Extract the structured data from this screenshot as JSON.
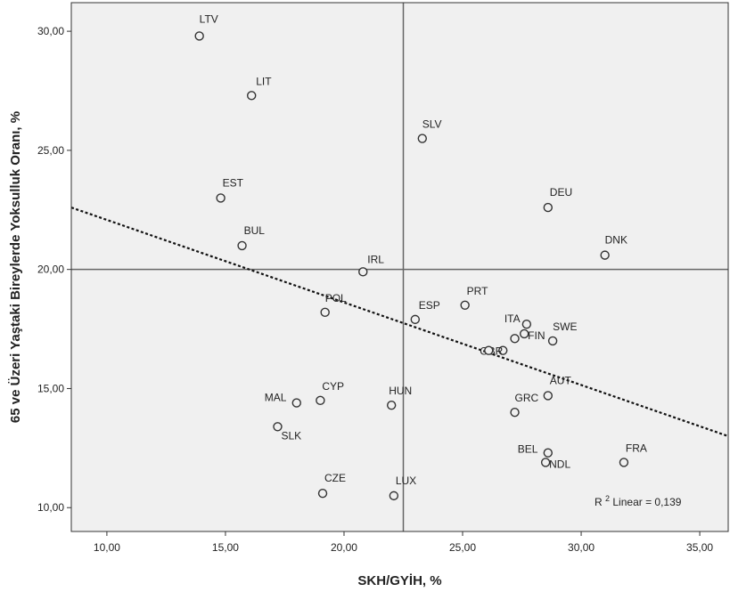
{
  "chart_data": {
    "type": "scatter",
    "title": "",
    "xlabel": "SKH/GYİH, %",
    "ylabel": "65 ve Üzeri Yaştaki Bireylerde Yoksulluk Oranı, %",
    "xlim": [
      8.5,
      36.2
    ],
    "ylim": [
      9.0,
      31.2
    ],
    "xticks": [
      10,
      15,
      20,
      25,
      30,
      35
    ],
    "yticks": [
      10,
      15,
      20,
      25,
      30
    ],
    "xtick_labels": [
      "10,00",
      "15,00",
      "20,00",
      "25,00",
      "30,00",
      "35,00"
    ],
    "ytick_labels": [
      "10,00",
      "15,00",
      "20,00",
      "25,00",
      "30,00"
    ],
    "reference_lines": {
      "x": 22.5,
      "y": 20.0
    },
    "fit_line": {
      "type": "linear",
      "x": [
        8.5,
        36.2
      ],
      "y": [
        22.6,
        13.0
      ]
    },
    "r2_annotation": {
      "prefix": "R",
      "superscript": "2",
      "text": " Linear = 0,139"
    },
    "points": [
      {
        "label": "LTV",
        "x": 13.9,
        "y": 29.8
      },
      {
        "label": "LIT",
        "x": 16.1,
        "y": 27.3
      },
      {
        "label": "SLV",
        "x": 23.3,
        "y": 25.5
      },
      {
        "label": "EST",
        "x": 14.8,
        "y": 23.0
      },
      {
        "label": "DEU",
        "x": 28.6,
        "y": 22.6
      },
      {
        "label": "BUL",
        "x": 15.7,
        "y": 21.0
      },
      {
        "label": "DNK",
        "x": 31.0,
        "y": 20.6
      },
      {
        "label": "IRL",
        "x": 20.8,
        "y": 19.9
      },
      {
        "label": "PRT",
        "x": 25.1,
        "y": 18.5
      },
      {
        "label": "POL",
        "x": 19.2,
        "y": 18.2
      },
      {
        "label": "ESP",
        "x": 23.0,
        "y": 17.9
      },
      {
        "label": "ITA",
        "x": 27.7,
        "y": 17.7
      },
      {
        "label": "FIN",
        "x": 27.6,
        "y": 17.3
      },
      {
        "label": "SWE",
        "x": 28.8,
        "y": 17.0
      },
      {
        "label": "",
        "x": 27.2,
        "y": 17.1
      },
      {
        "label": "GBR",
        "x": 26.7,
        "y": 16.6
      },
      {
        "label": "",
        "x": 26.1,
        "y": 16.6
      },
      {
        "label": "AUT",
        "x": 28.6,
        "y": 14.7
      },
      {
        "label": "MAL",
        "x": 18.0,
        "y": 14.4
      },
      {
        "label": "CYP",
        "x": 19.0,
        "y": 14.5
      },
      {
        "label": "HUN",
        "x": 22.0,
        "y": 14.3
      },
      {
        "label": "GRC",
        "x": 27.2,
        "y": 14.0
      },
      {
        "label": "SLK",
        "x": 17.2,
        "y": 13.4
      },
      {
        "label": "BEL",
        "x": 28.6,
        "y": 12.3
      },
      {
        "label": "FRA",
        "x": 31.8,
        "y": 11.9
      },
      {
        "label": "NDL",
        "x": 28.5,
        "y": 11.9
      },
      {
        "label": "CZE",
        "x": 19.1,
        "y": 10.6
      },
      {
        "label": "LUX",
        "x": 22.1,
        "y": 10.5
      }
    ]
  },
  "colors": {
    "plot_bg": "#f0f0f0",
    "axis": "#333333",
    "ref_line": "#666666",
    "fit_line": "#111111",
    "marker_edge": "#333333",
    "marker_fill": "#f0f0f0"
  }
}
